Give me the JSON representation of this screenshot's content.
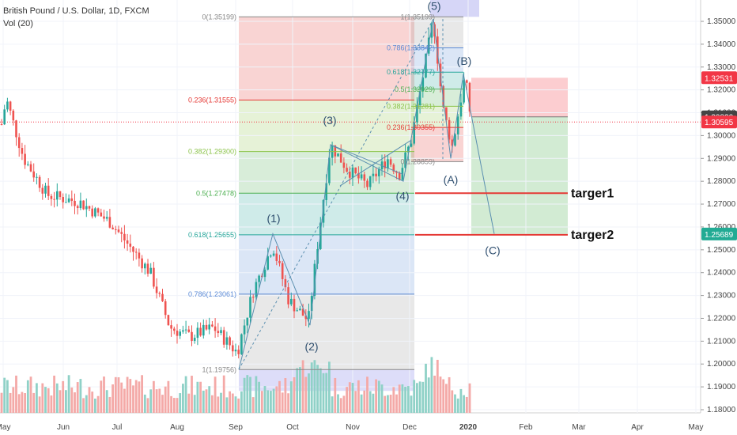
{
  "header": {
    "symbol_line": "British Pound / U.S. Dollar, 1D, FXCM",
    "volume_line": "Vol (20)"
  },
  "price_axis": {
    "ticks": [
      "1.35000",
      "1.34000",
      "1.33000",
      "1.32000",
      "1.31000",
      "1.30000",
      "1.29000",
      "1.28000",
      "1.27000",
      "1.26000",
      "1.25000",
      "1.24000",
      "1.23000",
      "1.22000",
      "1.21000",
      "1.20000",
      "1.19000",
      "1.18000"
    ],
    "tick_values": [
      1.35,
      1.34,
      1.33,
      1.32,
      1.31,
      1.3,
      1.29,
      1.28,
      1.27,
      1.26,
      1.25,
      1.24,
      1.23,
      1.22,
      1.21,
      1.2,
      1.19,
      1.18
    ],
    "badges": [
      {
        "label": "1.32531",
        "value": 1.32531,
        "color": "#f23645"
      },
      {
        "label": "1.30820",
        "value": 1.3082,
        "color": "#444444"
      },
      {
        "label": "1.30595",
        "value": 1.30595,
        "color": "#f23645"
      },
      {
        "label": "1.25689",
        "value": 1.25689,
        "color": "#22ab94"
      }
    ]
  },
  "time_axis": {
    "labels": [
      "May",
      "Jun",
      "Jul",
      "Aug",
      "Sep",
      "Oct",
      "Nov",
      "Dec",
      "2020",
      "Feb",
      "Mar",
      "Apr",
      "May"
    ]
  },
  "fib_left": {
    "levels": [
      {
        "label": "0(1.35199)",
        "value": 1.35199,
        "color": "#888888"
      },
      {
        "label": "0.236(1.31555)",
        "value": 1.31555,
        "color": "#e53935"
      },
      {
        "label": "0.382(1.29300)",
        "value": 1.293,
        "color": "#8bc34a"
      },
      {
        "label": "0.5(1.27478)",
        "value": 1.27478,
        "color": "#4caf50"
      },
      {
        "label": "0.618(1.25655)",
        "value": 1.25655,
        "color": "#26a69a"
      },
      {
        "label": "0.786(1.23061)",
        "value": 1.23061,
        "color": "#5c8bd6"
      },
      {
        "label": "1(1.19756)",
        "value": 1.19756,
        "color": "#888888"
      }
    ]
  },
  "fib_right": {
    "levels": [
      {
        "label": "1(1.35199)",
        "value": 1.35199,
        "color": "#888888"
      },
      {
        "label": "0.786(1.33842)",
        "value": 1.33842,
        "color": "#5c8bd6"
      },
      {
        "label": "0.618(1.32777)",
        "value": 1.32777,
        "color": "#26a69a"
      },
      {
        "label": "0.5(1.32029)",
        "value": 1.32029,
        "color": "#4caf50"
      },
      {
        "label": "0.382(1.31281)",
        "value": 1.31281,
        "color": "#8bc34a"
      },
      {
        "label": "0.236(1.30355)",
        "value": 1.30355,
        "color": "#e53935"
      },
      {
        "label": "0(1.28859)",
        "value": 1.28859,
        "color": "#888888"
      }
    ]
  },
  "waves": [
    "(1)",
    "(2)",
    "(3)",
    "(4)",
    "(5)",
    "(A)",
    "(B)",
    "(C)"
  ],
  "targets": {
    "target1": "targer1",
    "target2": "targer2"
  },
  "colors": {
    "up": "#26a69a",
    "down": "#ef5350",
    "vol_up": "#8fd1c7",
    "vol_down": "#f4a9a7",
    "target_line": "#e53935"
  }
}
